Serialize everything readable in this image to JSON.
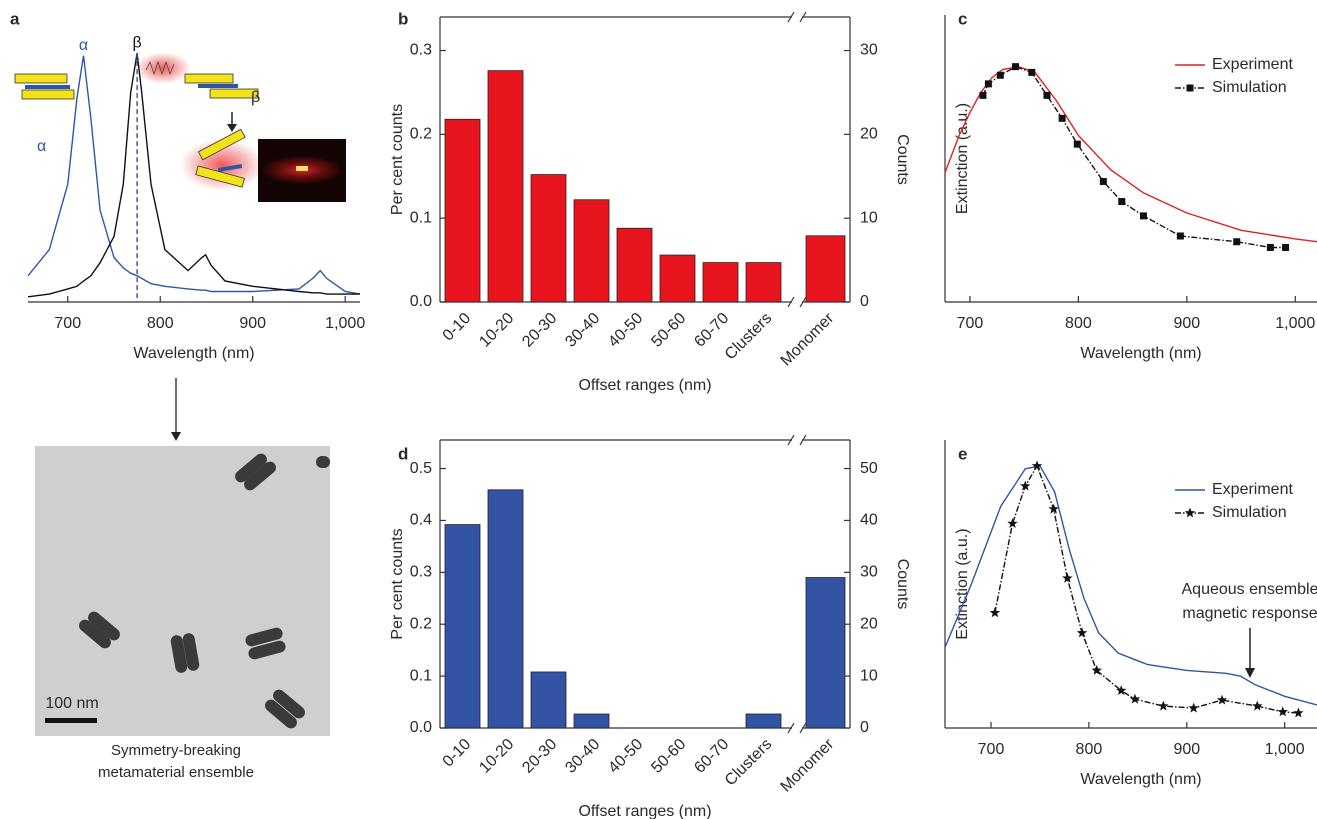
{
  "chart_data": [
    {
      "label": "a",
      "type": "line",
      "x": [
        657,
        680,
        700,
        710,
        717,
        725,
        735,
        750,
        760,
        768,
        775,
        780,
        790,
        805,
        830,
        845,
        849,
        855,
        870,
        900,
        950,
        965,
        973,
        980,
        1000,
        1016
      ],
      "series": [
        {
          "name": "α",
          "color": "#2f56a6",
          "values": [
            0.1,
            0.2,
            0.45,
            0.78,
            0.94,
            0.7,
            0.35,
            0.17,
            0.13,
            0.11,
            0.1,
            0.09,
            0.07,
            0.06,
            0.05,
            0.045,
            0.045,
            0.04,
            0.04,
            0.04,
            0.05,
            0.09,
            0.12,
            0.09,
            0.04,
            0.03
          ]
        },
        {
          "name": "β",
          "color": "#111111",
          "values": [
            0.02,
            0.03,
            0.05,
            0.06,
            0.08,
            0.1,
            0.15,
            0.25,
            0.45,
            0.8,
            0.95,
            0.8,
            0.45,
            0.2,
            0.12,
            0.17,
            0.18,
            0.14,
            0.08,
            0.06,
            0.04,
            0.035,
            0.035,
            0.03,
            0.03,
            0.03
          ]
        }
      ],
      "xlim": [
        657,
        1016
      ],
      "ylim": [
        0,
        1
      ],
      "xticks": [
        700,
        800,
        900,
        {
          "value": 1000,
          "label": "1,000"
        }
      ],
      "xlabel": "Wavelength (nm)"
    },
    {
      "label": "b",
      "type": "bar",
      "categories": [
        "0-10",
        "10-20",
        "20-30",
        "30-40",
        "40-50",
        "50-60",
        "60-70",
        "Clusters",
        "Monomer"
      ],
      "values": [
        0.218,
        0.276,
        0.152,
        0.122,
        0.088,
        0.056,
        0.047,
        0.047,
        0.079
      ],
      "color": "#e8141e",
      "ylim": [
        0,
        0.34
      ],
      "yticks": [
        {
          "value": 0,
          "label": "0.0"
        },
        0.1,
        0.2,
        0.3
      ],
      "y2lim": [
        0,
        34
      ],
      "y2ticks": [
        0,
        10,
        20,
        30
      ],
      "xlabel": "Offset ranges (nm)",
      "ylabel": "Per cent counts",
      "y2label": "Counts"
    },
    {
      "label": "c",
      "type": "line",
      "series": [
        {
          "name": "Experiment",
          "color": "#e02020",
          "x": [
            677,
            690,
            700,
            710,
            720,
            730,
            745,
            760,
            780,
            800,
            830,
            860,
            900,
            950,
            1000,
            1020
          ],
          "values": [
            0.45,
            0.58,
            0.66,
            0.73,
            0.78,
            0.81,
            0.82,
            0.8,
            0.7,
            0.58,
            0.46,
            0.38,
            0.31,
            0.25,
            0.22,
            0.21
          ]
        },
        {
          "name": "Simulation",
          "color": "#111111",
          "marker": "square",
          "linestyle": "dashdot",
          "x": [
            712,
            717,
            728,
            742,
            757,
            771,
            785,
            799,
            823,
            840,
            860,
            894,
            946,
            977,
            991
          ],
          "values": [
            0.72,
            0.76,
            0.79,
            0.82,
            0.8,
            0.72,
            0.64,
            0.55,
            0.42,
            0.35,
            0.3,
            0.23,
            0.21,
            0.19,
            0.19
          ]
        }
      ],
      "xlim": [
        677,
        1020
      ],
      "ylim": [
        0,
        1
      ],
      "xticks": [
        700,
        800,
        900,
        {
          "value": 1000,
          "label": "1,000"
        }
      ],
      "xlabel": "Wavelength (nm)",
      "ylabel": "Extinction (a.u.)",
      "legend": "upper right"
    },
    {
      "label": "d",
      "type": "bar",
      "categories": [
        "0-10",
        "10-20",
        "20-30",
        "30-40",
        "40-50",
        "50-60",
        "60-70",
        "Clusters",
        "Monomer"
      ],
      "values": [
        0.392,
        0.459,
        0.108,
        0.027,
        0,
        0,
        0,
        0.027,
        0.29
      ],
      "color": "#3353a5",
      "ylim": [
        0,
        0.555
      ],
      "yticks": [
        {
          "value": 0,
          "label": "0.0"
        },
        0.1,
        0.2,
        0.3,
        0.4,
        0.5
      ],
      "y2lim": [
        0,
        55.5
      ],
      "y2ticks": [
        0,
        10,
        20,
        30,
        40,
        50
      ],
      "xlabel": "Offset ranges (nm)",
      "ylabel": "Per cent counts",
      "y2label": "Counts"
    },
    {
      "label": "e",
      "type": "line",
      "series": [
        {
          "name": "Experiment",
          "color": "#2f56a6",
          "x": [
            653,
            680,
            710,
            735,
            750,
            765,
            780,
            795,
            810,
            830,
            860,
            900,
            940,
            955,
            970,
            1000,
            1033
          ],
          "values": [
            0.28,
            0.5,
            0.77,
            0.9,
            0.91,
            0.82,
            0.62,
            0.45,
            0.33,
            0.26,
            0.22,
            0.2,
            0.19,
            0.18,
            0.15,
            0.11,
            0.08
          ]
        },
        {
          "name": "Simulation",
          "color": "#111111",
          "marker": "star",
          "linestyle": "dashdot",
          "x": [
            704,
            722,
            735,
            747,
            764,
            778,
            793,
            808,
            833,
            847,
            876,
            907,
            936,
            972,
            998,
            1014
          ],
          "values": [
            0.4,
            0.71,
            0.84,
            0.91,
            0.76,
            0.52,
            0.33,
            0.2,
            0.13,
            0.1,
            0.076,
            0.069,
            0.097,
            0.076,
            0.056,
            0.052
          ]
        }
      ],
      "xlim": [
        653,
        1033
      ],
      "ylim": [
        0,
        1
      ],
      "xticks": [
        700,
        800,
        900,
        {
          "value": 1000,
          "label": "1,000"
        }
      ],
      "xlabel": "Wavelength (nm)",
      "ylabel": "Extinction (a.u.)",
      "legend": "upper right",
      "annotation": [
        "Aqueous ensemble",
        "magnetic response"
      ]
    }
  ],
  "schematic": {
    "labels": [
      "α",
      "β"
    ]
  },
  "tem": {
    "scale_bar": "100 nm",
    "caption": [
      "Symmetry-breaking",
      "metamaterial ensemble"
    ]
  }
}
